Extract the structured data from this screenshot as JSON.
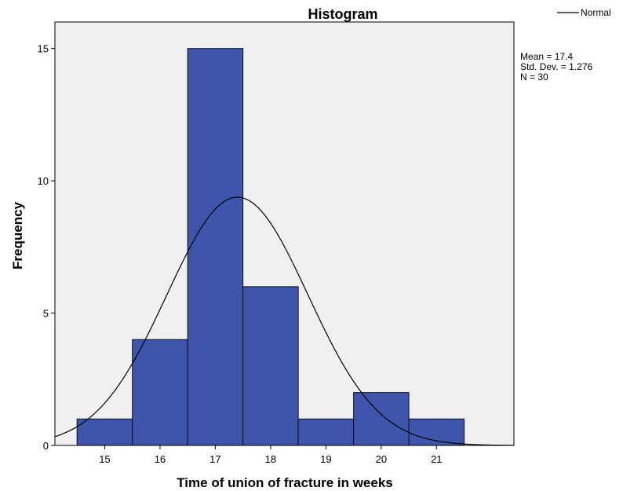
{
  "colors": {
    "plot_background": "#f0f0f0",
    "bar_fill": "#3d56ab",
    "bar_stroke": "#111111",
    "curve": "#000000"
  },
  "chart_data": {
    "type": "bar",
    "title": "Histogram",
    "xlabel": "Time of union of fracture in weeks",
    "ylabel": "Frequency",
    "bin_centers": [
      15,
      16,
      17,
      18,
      19,
      20,
      21
    ],
    "categories": [
      "15",
      "16",
      "17",
      "18",
      "19",
      "20",
      "21"
    ],
    "values": [
      1,
      4,
      15,
      6,
      1,
      2,
      1
    ],
    "xlim": [
      14.1,
      22.4
    ],
    "ylim": [
      0,
      16
    ],
    "yticks": [
      0,
      5,
      10,
      15
    ],
    "grid": false,
    "legend": {
      "position": "top-right",
      "entries": [
        "Normal"
      ]
    },
    "normal_curve": {
      "mean": 17.4,
      "std": 1.276,
      "n": 30,
      "bin_width": 1
    },
    "stats_text": [
      "Mean = 17.4",
      "Std. Dev. = 1.276",
      "N = 30"
    ]
  }
}
